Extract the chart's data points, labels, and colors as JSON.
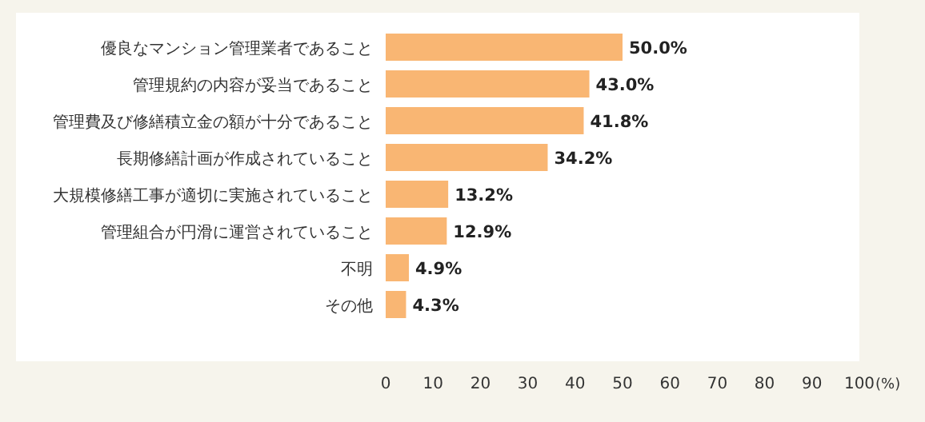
{
  "chart_data": {
    "type": "bar",
    "orientation": "horizontal",
    "categories": [
      "優良なマンション管理業者であること",
      "管理規約の内容が妥当であること",
      "管理費及び修繕積立金の額が十分であること",
      "長期修繕計画が作成されていること",
      "大規模修繕工事が適切に実施されていること",
      "管理組合が円滑に運営されていること",
      "不明",
      "その他"
    ],
    "values": [
      50.0,
      43.0,
      41.8,
      34.2,
      13.2,
      12.9,
      4.9,
      4.3
    ],
    "value_labels": [
      "50.0%",
      "43.0%",
      "41.8%",
      "34.2%",
      "13.2%",
      "12.9%",
      "4.9%",
      "4.3%"
    ],
    "color": "#f9b673",
    "xlim": [
      0,
      100
    ],
    "xticks": [
      0,
      10,
      20,
      30,
      40,
      50,
      60,
      70,
      80,
      90,
      100
    ],
    "xlabel": "(%)"
  }
}
